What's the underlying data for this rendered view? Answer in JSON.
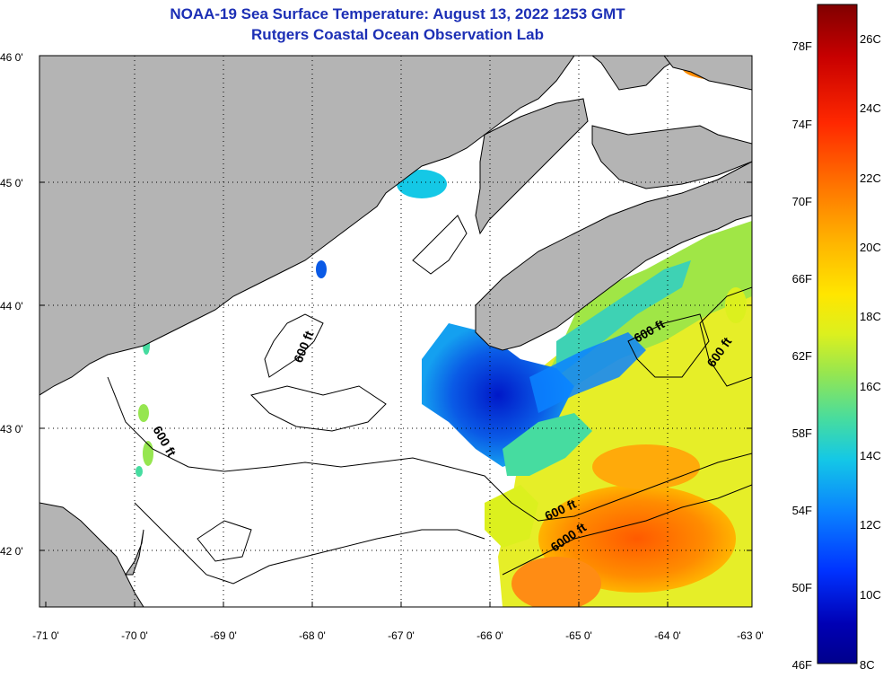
{
  "title": {
    "line1": "NOAA-19 Sea Surface Temperature:  August 13, 2022 1253 GMT",
    "line2": "Rutgers Coastal Ocean Observation Lab"
  },
  "map": {
    "lat_labels": [
      "46 0'",
      "45 0'",
      "44 0'",
      "43 0'",
      "42 0'"
    ],
    "lon_labels": [
      "-71 0'",
      "-70 0'",
      "-69 0'",
      "-68 0'",
      "-67 0'",
      "-66 0'",
      "-65 0'",
      "-64 0'",
      "-63 0'"
    ],
    "contour_labels": [
      "600 ft",
      "600 ft",
      "600 ft",
      "600 ft",
      "600 ft",
      "6000 ft"
    ],
    "land_color": "#b4b4b4",
    "cloud_color": "#ffffff"
  },
  "colorbar": {
    "fahrenheit_labels": [
      "78F",
      "74F",
      "70F",
      "66F",
      "62F",
      "58F",
      "54F",
      "50F",
      "46F"
    ],
    "celsius_labels": [
      "26C",
      "24C",
      "22C",
      "20C",
      "18C",
      "16C",
      "14C",
      "12C",
      "10C",
      "8C"
    ],
    "gradient_colors": [
      "#800000",
      "#c80000",
      "#ff2800",
      "#ff7800",
      "#ffb400",
      "#ffe600",
      "#dcf01e",
      "#96e650",
      "#46dca0",
      "#14c8e6",
      "#0a82ff",
      "#0032ff",
      "#0000b4",
      "#00008c"
    ]
  }
}
